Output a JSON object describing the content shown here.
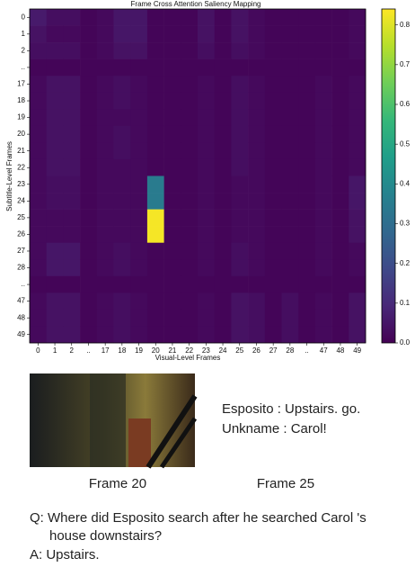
{
  "chart_data": {
    "type": "heatmap",
    "title": "Frame Cross Attention Saliency Mapping",
    "x_label": "Visual-Level Frames",
    "y_label": "Subtitle-Level Frames",
    "x_categories": [
      "0",
      "1",
      "2",
      "..",
      "17",
      "18",
      "19",
      "20",
      "21",
      "22",
      "23",
      "24",
      "25",
      "26",
      "27",
      "28",
      "..",
      "47",
      "48",
      "49"
    ],
    "y_categories": [
      "0",
      "1",
      "2",
      "..",
      "17",
      "18",
      "19",
      "20",
      "21",
      "22",
      "23",
      "24",
      "25",
      "26",
      "27",
      "28",
      "..",
      "47",
      "48",
      "49"
    ],
    "colormap": "viridis",
    "zlim": [
      0,
      0.84
    ],
    "zticks": [
      {
        "value": 0,
        "label": "0.0"
      },
      0.1,
      0.2,
      0.3,
      0.4,
      0.5,
      0.6,
      0.7,
      0.8
    ],
    "values": [
      [
        0.06,
        0.03,
        0.03,
        0.01,
        0.02,
        0.05,
        0.05,
        0.01,
        0.01,
        0.01,
        0.04,
        0.01,
        0.04,
        0.02,
        0.01,
        0.01,
        0.01,
        0.01,
        0.01,
        0.02
      ],
      [
        0.04,
        0.02,
        0.02,
        0.01,
        0.02,
        0.05,
        0.05,
        0.01,
        0.01,
        0.01,
        0.04,
        0.01,
        0.04,
        0.02,
        0.01,
        0.01,
        0.01,
        0.01,
        0.01,
        0.02
      ],
      [
        0.03,
        0.03,
        0.03,
        0.01,
        0.02,
        0.04,
        0.04,
        0.01,
        0.01,
        0.01,
        0.03,
        0.01,
        0.03,
        0.02,
        0.01,
        0.01,
        0.01,
        0.01,
        0.01,
        0.02
      ],
      [
        0.01,
        0.01,
        0.01,
        0.01,
        0.01,
        0.01,
        0.01,
        0.01,
        0.01,
        0.01,
        0.01,
        0.01,
        0.01,
        0.01,
        0.01,
        0.01,
        0.01,
        0.01,
        0.01,
        0.01
      ],
      [
        0.02,
        0.04,
        0.04,
        0.01,
        0.02,
        0.03,
        0.02,
        0.01,
        0.01,
        0.01,
        0.02,
        0.01,
        0.03,
        0.02,
        0.01,
        0.01,
        0.01,
        0.02,
        0.01,
        0.02
      ],
      [
        0.02,
        0.04,
        0.04,
        0.01,
        0.02,
        0.03,
        0.02,
        0.01,
        0.01,
        0.01,
        0.02,
        0.01,
        0.03,
        0.02,
        0.01,
        0.01,
        0.01,
        0.02,
        0.01,
        0.02
      ],
      [
        0.02,
        0.04,
        0.04,
        0.01,
        0.02,
        0.02,
        0.02,
        0.01,
        0.01,
        0.01,
        0.02,
        0.01,
        0.03,
        0.02,
        0.01,
        0.01,
        0.01,
        0.02,
        0.01,
        0.02
      ],
      [
        0.02,
        0.04,
        0.04,
        0.01,
        0.02,
        0.03,
        0.02,
        0.01,
        0.01,
        0.01,
        0.02,
        0.01,
        0.03,
        0.02,
        0.01,
        0.01,
        0.01,
        0.02,
        0.01,
        0.02
      ],
      [
        0.02,
        0.04,
        0.04,
        0.01,
        0.02,
        0.03,
        0.02,
        0.01,
        0.01,
        0.01,
        0.02,
        0.01,
        0.03,
        0.02,
        0.01,
        0.01,
        0.01,
        0.02,
        0.01,
        0.02
      ],
      [
        0.02,
        0.04,
        0.04,
        0.01,
        0.02,
        0.02,
        0.02,
        0.01,
        0.01,
        0.01,
        0.02,
        0.01,
        0.03,
        0.02,
        0.01,
        0.01,
        0.01,
        0.02,
        0.01,
        0.02
      ],
      [
        0.02,
        0.03,
        0.03,
        0.01,
        0.02,
        0.02,
        0.02,
        0.35,
        0.01,
        0.01,
        0.02,
        0.01,
        0.02,
        0.02,
        0.01,
        0.01,
        0.01,
        0.02,
        0.01,
        0.05
      ],
      [
        0.02,
        0.03,
        0.03,
        0.01,
        0.02,
        0.02,
        0.02,
        0.35,
        0.01,
        0.01,
        0.02,
        0.01,
        0.02,
        0.02,
        0.01,
        0.01,
        0.01,
        0.02,
        0.01,
        0.05
      ],
      [
        0.02,
        0.02,
        0.02,
        0.01,
        0.02,
        0.02,
        0.02,
        0.83,
        0.01,
        0.01,
        0.02,
        0.01,
        0.02,
        0.02,
        0.01,
        0.01,
        0.01,
        0.02,
        0.01,
        0.04
      ],
      [
        0.02,
        0.02,
        0.02,
        0.01,
        0.02,
        0.02,
        0.02,
        0.83,
        0.01,
        0.01,
        0.02,
        0.01,
        0.02,
        0.02,
        0.01,
        0.01,
        0.01,
        0.02,
        0.01,
        0.04
      ],
      [
        0.02,
        0.05,
        0.05,
        0.01,
        0.02,
        0.03,
        0.02,
        0.01,
        0.01,
        0.01,
        0.02,
        0.01,
        0.03,
        0.02,
        0.01,
        0.01,
        0.01,
        0.02,
        0.01,
        0.02
      ],
      [
        0.02,
        0.05,
        0.05,
        0.01,
        0.02,
        0.03,
        0.02,
        0.01,
        0.01,
        0.01,
        0.02,
        0.01,
        0.03,
        0.02,
        0.01,
        0.01,
        0.01,
        0.02,
        0.01,
        0.02
      ],
      [
        0.01,
        0.01,
        0.01,
        0.01,
        0.01,
        0.01,
        0.01,
        0.01,
        0.01,
        0.01,
        0.01,
        0.01,
        0.01,
        0.01,
        0.01,
        0.01,
        0.01,
        0.01,
        0.01,
        0.01
      ],
      [
        0.02,
        0.04,
        0.04,
        0.01,
        0.02,
        0.03,
        0.02,
        0.01,
        0.01,
        0.01,
        0.02,
        0.01,
        0.04,
        0.03,
        0.01,
        0.03,
        0.01,
        0.02,
        0.01,
        0.04
      ],
      [
        0.02,
        0.04,
        0.04,
        0.01,
        0.02,
        0.03,
        0.02,
        0.01,
        0.01,
        0.01,
        0.02,
        0.01,
        0.04,
        0.03,
        0.01,
        0.03,
        0.01,
        0.02,
        0.01,
        0.04
      ],
      [
        0.02,
        0.04,
        0.04,
        0.01,
        0.02,
        0.03,
        0.02,
        0.01,
        0.01,
        0.01,
        0.02,
        0.01,
        0.04,
        0.03,
        0.01,
        0.03,
        0.01,
        0.02,
        0.01,
        0.04
      ]
    ]
  },
  "frames": {
    "subtitle_lines": [
      "Esposito : Upstairs. go.",
      "Unkname : Carol!"
    ],
    "captions": [
      "Frame 20",
      "Frame 25"
    ]
  },
  "qa": {
    "question_lines": [
      "Q: Where did Esposito search after he searched Carol 's",
      "house downstairs?"
    ],
    "answer": "A: Upstairs."
  }
}
